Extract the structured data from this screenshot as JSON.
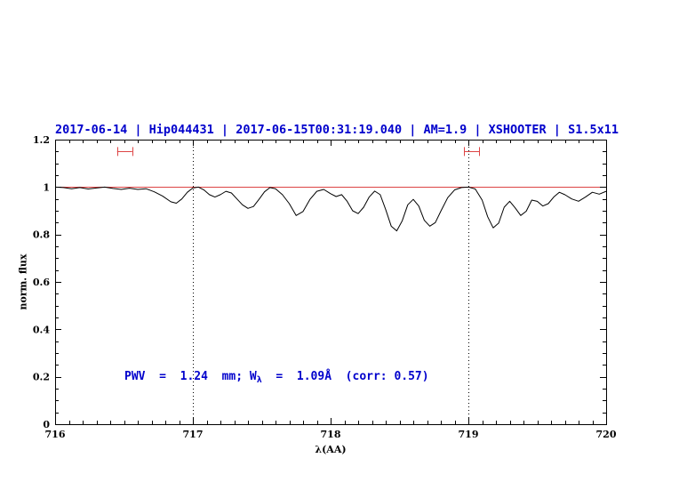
{
  "chart_data": {
    "type": "line",
    "title": "2017-06-14 | Hip044431 | 2017-06-15T00:31:19.040 | AM=1.9 | XSHOOTER | S1.5x11",
    "title_color": "#0000cc",
    "xlabel": "λ(AA)",
    "ylabel": "norm. flux",
    "xlim": [
      716,
      720
    ],
    "ylim": [
      0,
      1.2
    ],
    "grid": false,
    "xticks": {
      "values": [
        716,
        717,
        718,
        719,
        720
      ],
      "labels": [
        "716",
        "717",
        "718",
        "719",
        "720"
      ]
    },
    "yticks": {
      "values": [
        0,
        0.2,
        0.4,
        0.6,
        0.8,
        1,
        1.2
      ],
      "labels": [
        "0",
        "0.2",
        "0.4",
        "0.6",
        "0.8",
        "1",
        "1.2"
      ]
    },
    "x_minor_step": 0.1,
    "y_minor_step": 0.05,
    "axis_color": "#000000",
    "vlines": {
      "x": [
        717,
        719
      ],
      "style": "dotted",
      "color": "#000000"
    },
    "hline": {
      "y": 1.0,
      "color": "#dd4444"
    },
    "window_markers": {
      "y": 1.15,
      "color": "#dd4444",
      "spans": [
        [
          716.45,
          716.56
        ],
        [
          718.97,
          719.08
        ]
      ]
    },
    "annotation": {
      "prefix": "PWV  =  1.24  mm; W",
      "sub": "λ",
      "suffix": "  =  1.09Å  (corr: 0.57)",
      "color": "#0000cc",
      "x": 716.5,
      "y": 0.2
    },
    "series": [
      {
        "name": "spectrum",
        "color": "#000000",
        "x": [
          716.0,
          716.06,
          716.12,
          716.18,
          716.24,
          716.3,
          716.36,
          716.42,
          716.48,
          716.54,
          716.6,
          716.66,
          716.72,
          716.78,
          716.84,
          716.88,
          716.92,
          716.96,
          717.0,
          717.04,
          717.08,
          717.12,
          717.16,
          717.2,
          717.24,
          717.28,
          717.32,
          717.36,
          717.4,
          717.44,
          717.48,
          717.52,
          717.56,
          717.6,
          717.65,
          717.7,
          717.75,
          717.8,
          717.85,
          717.9,
          717.95,
          718.0,
          718.04,
          718.08,
          718.12,
          718.16,
          718.2,
          718.24,
          718.28,
          718.32,
          718.36,
          718.4,
          718.44,
          718.48,
          718.52,
          718.56,
          718.6,
          718.64,
          718.68,
          718.72,
          718.76,
          718.8,
          718.85,
          718.9,
          718.95,
          719.0,
          719.05,
          719.1,
          719.14,
          719.18,
          719.22,
          719.26,
          719.3,
          719.34,
          719.38,
          719.42,
          719.46,
          719.5,
          719.54,
          719.58,
          719.62,
          719.66,
          719.7,
          719.75,
          719.8,
          719.85,
          719.9,
          719.95,
          720.0
        ],
        "y": [
          1.0,
          0.998,
          0.993,
          0.998,
          0.992,
          0.996,
          1.0,
          0.994,
          0.99,
          0.995,
          0.99,
          0.993,
          0.98,
          0.962,
          0.938,
          0.932,
          0.95,
          0.978,
          0.996,
          1.0,
          0.988,
          0.968,
          0.958,
          0.968,
          0.982,
          0.975,
          0.95,
          0.925,
          0.91,
          0.918,
          0.948,
          0.98,
          0.998,
          0.993,
          0.968,
          0.93,
          0.88,
          0.897,
          0.948,
          0.982,
          0.99,
          0.972,
          0.96,
          0.968,
          0.94,
          0.9,
          0.888,
          0.915,
          0.958,
          0.983,
          0.968,
          0.905,
          0.835,
          0.815,
          0.858,
          0.925,
          0.948,
          0.92,
          0.86,
          0.835,
          0.85,
          0.898,
          0.955,
          0.988,
          0.998,
          1.0,
          0.992,
          0.945,
          0.875,
          0.828,
          0.848,
          0.915,
          0.94,
          0.912,
          0.88,
          0.898,
          0.945,
          0.94,
          0.92,
          0.93,
          0.958,
          0.978,
          0.968,
          0.95,
          0.94,
          0.958,
          0.978,
          0.97,
          0.982
        ]
      }
    ]
  }
}
